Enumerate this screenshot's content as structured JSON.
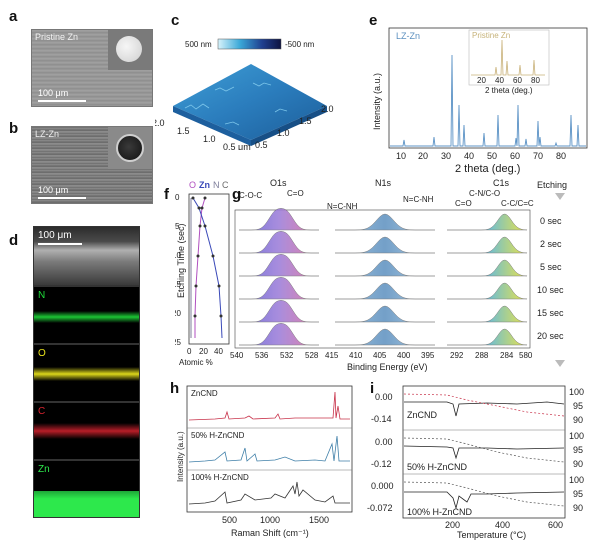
{
  "panels": {
    "a": {
      "label": "a",
      "tag": "Pristine Zn",
      "scale": "100 μm"
    },
    "b": {
      "label": "b",
      "tag": "LZ-Zn",
      "scale": "100 μm"
    },
    "c": {
      "label": "c",
      "colorbar_max": "500 nm",
      "colorbar_min": "-500 nm",
      "axis_left": [
        "2.0",
        "1.5",
        "1.0",
        "0.5 μm"
      ],
      "axis_right": [
        "0.5",
        "1.0",
        "1.5",
        "2.0"
      ]
    },
    "d": {
      "label": "d",
      "scale": "100 μm",
      "maps": [
        "N",
        "O",
        "C",
        "Zn"
      ],
      "map_colors": [
        "#1fdc3a",
        "#e8e21c",
        "#d8232f",
        "#2de84c"
      ]
    },
    "e": {
      "label": "e",
      "tag": "LZ-Zn",
      "inset_tag": "Pristine Zn",
      "xlabel": "2 theta (deg.)",
      "ylabel": "Intensity (a.u.)",
      "xticks": [
        "10",
        "20",
        "30",
        "40",
        "50",
        "60",
        "70",
        "80"
      ],
      "inset_xticks": [
        "20",
        "40",
        "60",
        "80"
      ],
      "inset_xlabel": "2 theta (deg.)"
    },
    "f": {
      "label": "f",
      "legend": [
        "O",
        "Zn",
        "N",
        "C"
      ],
      "legend_colors": [
        "#b04fc0",
        "#3a49b8",
        "#7d7d9a",
        "#6b6b6b"
      ],
      "ylabel": "Etching Time (sec)",
      "yticks": [
        "0",
        "5",
        "10",
        "15",
        "20",
        "25"
      ],
      "xticks": [
        "0",
        "20",
        "40"
      ],
      "xlabel": "Atomic %"
    },
    "g": {
      "label": "g",
      "groups": [
        "O1s",
        "N1s",
        "C1s"
      ],
      "annotations": [
        "C-O-C",
        "C=O",
        "N=C-NH",
        "N=C-NH",
        "C-N/C-O",
        "C=O",
        "C-C/C=C"
      ],
      "etching_header": "Etching",
      "etching": [
        "0 sec",
        "2 sec",
        "5 sec",
        "10 sec",
        "15 sec",
        "20 sec"
      ],
      "xticks_o": [
        "540",
        "536",
        "532",
        "528"
      ],
      "xticks_n": [
        "415",
        "410",
        "405",
        "400",
        "395"
      ],
      "xticks_c": [
        "292",
        "288",
        "284"
      ],
      "xtick_c_last": "580",
      "xlabel": "Binding Energy (eV)"
    },
    "h": {
      "label": "h",
      "series": [
        "ZnCND",
        "50% H-ZnCND",
        "100% H-ZnCND"
      ],
      "ylabel": "Intensity (a.u.)",
      "xlabel": "Raman Shift (cm⁻¹)",
      "xticks": [
        "500",
        "1000",
        "1500"
      ]
    },
    "i": {
      "label": "i",
      "series": [
        "ZnCND",
        "50% H-ZnCND",
        "100% H-ZnCND"
      ],
      "left_ticks": [
        [
          "0.00",
          "-0.14"
        ],
        [
          "0.00",
          "-0.12"
        ],
        [
          "0.000",
          "-0.072"
        ]
      ],
      "right_ticks": [
        [
          "100",
          "95",
          "90"
        ],
        [
          "100",
          "95",
          "90"
        ],
        [
          "100",
          "95",
          "90"
        ]
      ],
      "xlabel": "Temperature (°C)",
      "xticks": [
        "200",
        "400",
        "600"
      ]
    }
  }
}
